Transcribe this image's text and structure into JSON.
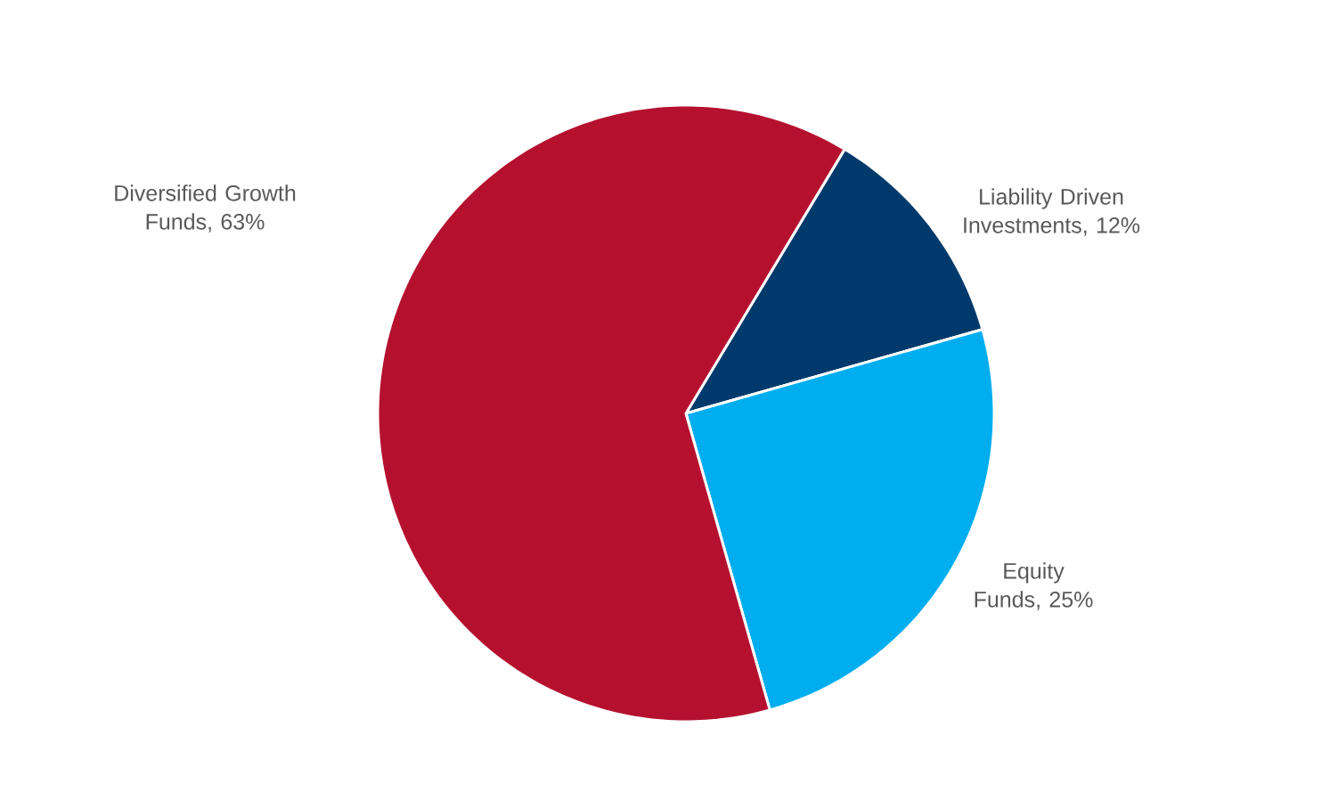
{
  "chart_data": {
    "type": "pie",
    "categories": [
      "Liability Driven Investments",
      "Equity Funds",
      "Diversified Growth Funds"
    ],
    "values": [
      12,
      25,
      63
    ],
    "value_labels": [
      ", 12%",
      ", 25%",
      ", 63%"
    ],
    "colors": [
      "#003a6c",
      "#00aeef",
      "#b5112f"
    ]
  }
}
